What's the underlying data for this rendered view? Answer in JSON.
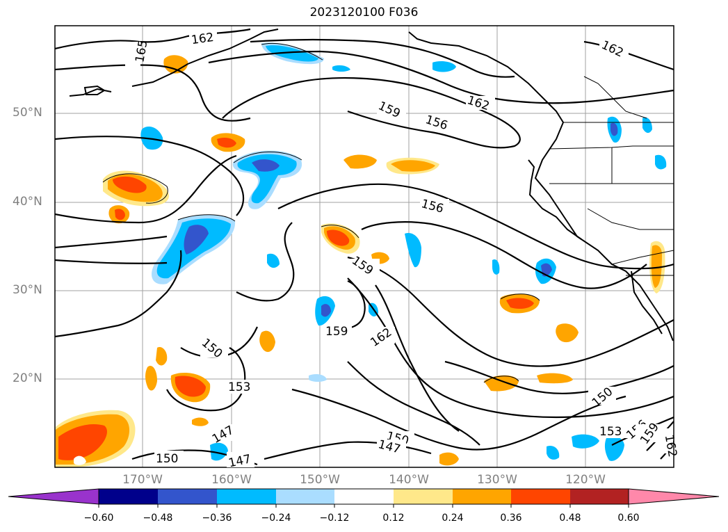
{
  "title": "2023120100 F036",
  "lat_labels": [
    "50°N",
    "40°N",
    "30°N",
    "20°N"
  ],
  "lon_labels": [
    "170°W",
    "160°W",
    "150°W",
    "140°W",
    "130°W",
    "120°W"
  ],
  "contour_labels": [
    "162",
    "165",
    "162",
    "162",
    "159",
    "156",
    "156",
    "159",
    "159",
    "162",
    "150",
    "153",
    "147",
    "150",
    "147",
    "150",
    "147",
    "150",
    "153",
    "156",
    "159",
    "162"
  ],
  "colorbar": {
    "tick_labels": [
      "−0.60",
      "−0.48",
      "−0.36",
      "−0.24",
      "−0.12",
      "0.12",
      "0.24",
      "0.36",
      "0.48",
      "0.60"
    ],
    "colors": [
      "#9933cc",
      "#00008b",
      "#3355cc",
      "#00bbff",
      "#aaddff",
      "#ffffff",
      "#ffe88a",
      "#ffa500",
      "#ff4500",
      "#b22222",
      "#ff88aa"
    ]
  },
  "palette": {
    "contour": "#000000",
    "coast": "#000000",
    "grid": "#a0a0a0",
    "axis_label": "#808080"
  }
}
